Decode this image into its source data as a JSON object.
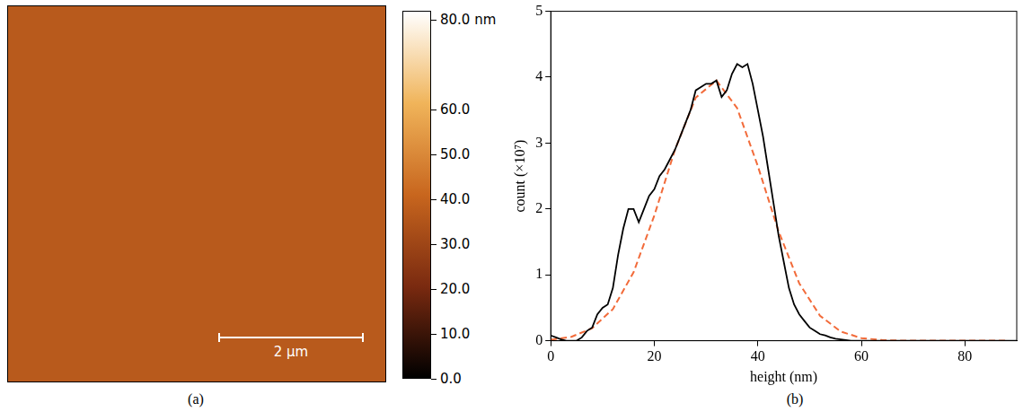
{
  "chart_data": [
    {
      "type": "image",
      "label": "(a)",
      "scale_bar_label": "2 μm",
      "colorbar": {
        "ylim": [
          0,
          82
        ],
        "yticks": [
          {
            "value": 0,
            "label": "0.0"
          },
          {
            "value": 10,
            "label": "10.0"
          },
          {
            "value": 20,
            "label": "20.0"
          },
          {
            "value": 30,
            "label": "30.0"
          },
          {
            "value": 40,
            "label": "40.0"
          },
          {
            "value": 50,
            "label": "50.0"
          },
          {
            "value": 60,
            "label": "60.0"
          },
          {
            "value": 80,
            "label": "80.0 nm"
          }
        ]
      }
    },
    {
      "type": "line",
      "label": "(b)",
      "x_label": "height (nm)",
      "y_label": "count (×10⁷)",
      "xlim": [
        0,
        90
      ],
      "xticks": [
        0,
        20,
        40,
        60,
        80
      ],
      "ylim": [
        0,
        5
      ],
      "yticks": [
        0,
        1,
        2,
        3,
        4,
        5
      ],
      "grid": false,
      "series": [
        {
          "color": "#000000",
          "line_style": "solid",
          "x": [
            0,
            1,
            2,
            3,
            4,
            5,
            6,
            7,
            8,
            9,
            10,
            11,
            12,
            13,
            14,
            15,
            16,
            17,
            18,
            19,
            20,
            21,
            22,
            23,
            24,
            25,
            26,
            27,
            28,
            29,
            30,
            31,
            32,
            33,
            34,
            35,
            36,
            37,
            38,
            39,
            40,
            41,
            42,
            43,
            44,
            45,
            46,
            47,
            48,
            49,
            50,
            51,
            52,
            53,
            54,
            55,
            56,
            57,
            58,
            60,
            65,
            70,
            75,
            80,
            85,
            90
          ],
          "values": [
            0.08,
            0.05,
            0.02,
            0,
            0,
            0,
            0.05,
            0.15,
            0.2,
            0.4,
            0.5,
            0.55,
            0.8,
            1.3,
            1.7,
            2.0,
            2.0,
            1.8,
            2.0,
            2.2,
            2.3,
            2.5,
            2.6,
            2.75,
            2.9,
            3.1,
            3.3,
            3.5,
            3.8,
            3.85,
            3.9,
            3.9,
            3.95,
            3.7,
            3.8,
            4.05,
            4.2,
            4.15,
            4.2,
            3.9,
            3.5,
            3.1,
            2.6,
            2.1,
            1.6,
            1.2,
            0.8,
            0.55,
            0.4,
            0.3,
            0.2,
            0.15,
            0.1,
            0.08,
            0.05,
            0.03,
            0.02,
            0.01,
            0,
            0,
            0,
            0,
            0,
            0,
            0,
            0
          ]
        },
        {
          "color": "#f26b3a",
          "line_style": "dashed",
          "x": [
            0,
            4,
            8,
            12,
            16,
            20,
            24,
            28,
            32,
            36,
            40,
            44,
            48,
            52,
            56,
            60,
            64,
            68,
            72,
            76,
            80,
            84,
            88
          ],
          "values": [
            0.016,
            0.06,
            0.19,
            0.48,
            1.04,
            1.9,
            2.9,
            3.69,
            3.95,
            3.53,
            2.65,
            1.66,
            0.87,
            0.38,
            0.14,
            0.04,
            0.01,
            0,
            0,
            0,
            0,
            0,
            0
          ]
        }
      ]
    }
  ]
}
